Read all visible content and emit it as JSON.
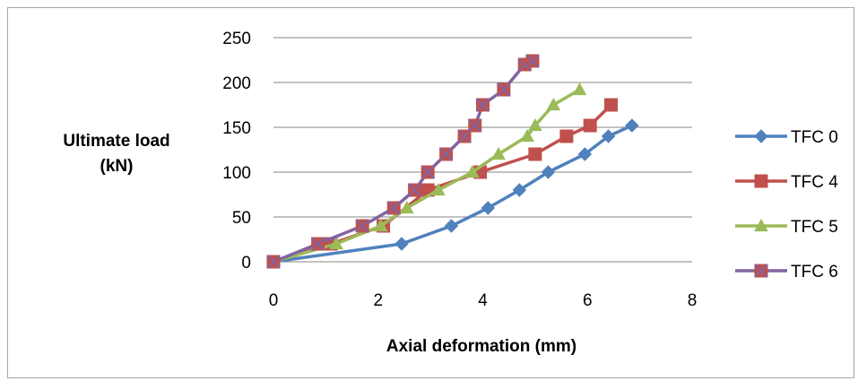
{
  "chart_data": {
    "type": "line",
    "title": "",
    "xlabel": "Axial deformation (mm)",
    "ylabel_lines": [
      "Ultimate load",
      "(kN)"
    ],
    "xlim": [
      0,
      8
    ],
    "ylim": [
      0,
      250
    ],
    "xticks": [
      "0",
      "2",
      "4",
      "6",
      "8"
    ],
    "yticks": [
      "0",
      "50",
      "100",
      "150",
      "200",
      "250"
    ],
    "grid": "horizontal",
    "legend_position": "right",
    "series": [
      {
        "name": "TFC 0",
        "color": "#4f81bd",
        "marker": "diamond",
        "x": [
          0,
          2.45,
          3.4,
          4.1,
          4.7,
          5.25,
          5.95,
          6.4,
          6.85
        ],
        "y": [
          0,
          20,
          40,
          60,
          80,
          100,
          120,
          140,
          152
        ]
      },
      {
        "name": "TFC 4",
        "color": "#c0504d",
        "marker": "square",
        "x": [
          0,
          1.1,
          2.1,
          2.95,
          3.95,
          5.0,
          5.6,
          6.05,
          6.45
        ],
        "y": [
          0,
          20,
          40,
          80,
          100,
          120,
          140,
          152,
          175
        ]
      },
      {
        "name": "TFC 5",
        "color": "#9bbb59",
        "marker": "triangle",
        "x": [
          0,
          1.2,
          2.05,
          2.55,
          3.15,
          3.8,
          4.3,
          4.85,
          5.0,
          5.35,
          5.85
        ],
        "y": [
          0,
          20,
          40,
          60,
          80,
          100,
          120,
          140,
          152,
          175,
          192
        ]
      },
      {
        "name": "TFC 6",
        "color": "#8064a2",
        "marker": "square-x",
        "x": [
          0,
          0.85,
          1.7,
          2.3,
          2.7,
          2.95,
          3.3,
          3.65,
          3.85,
          4.0,
          4.4,
          4.8,
          4.95
        ],
        "y": [
          0,
          20,
          40,
          60,
          80,
          100,
          120,
          140,
          152,
          175,
          192,
          220,
          224
        ]
      }
    ]
  }
}
